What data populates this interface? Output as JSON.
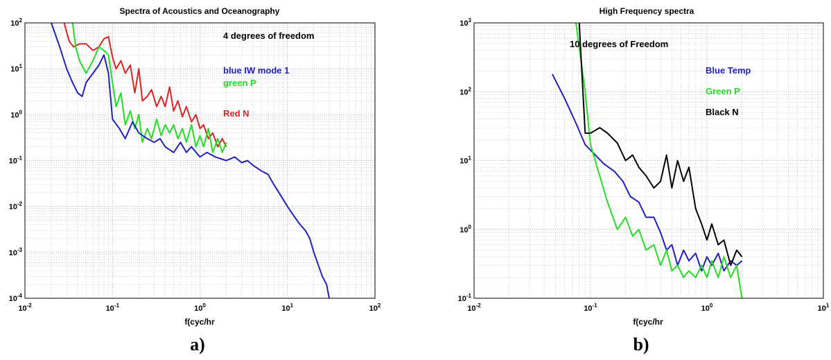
{
  "panel_labels": [
    "a)",
    "b)"
  ],
  "chart_data": [
    {
      "type": "line",
      "title": "Spectra of Acoustics and Oceanography",
      "xlabel": "f(cyc/hr",
      "ylabel": "",
      "xscale": "log",
      "yscale": "log",
      "xlim": [
        0.01,
        100
      ],
      "ylim": [
        0.0001,
        100
      ],
      "x_ticks": [
        "10-2",
        "10-1",
        "100",
        "101",
        "102"
      ],
      "y_ticks": [
        "10-4",
        "10-3",
        "10-2",
        "10-1",
        "100",
        "101",
        "102"
      ],
      "grid": true,
      "annotations": [
        {
          "text": "4 degrees of freedom",
          "color": "#000000"
        },
        {
          "text": "blue IW mode 1",
          "color": "#1f1fbf"
        },
        {
          "text": "green P",
          "color": "#22dd22"
        },
        {
          "text": "Red N",
          "color": "#dd2222"
        }
      ],
      "series": [
        {
          "color": "#dd2222",
          "x": [
            0.028,
            0.032,
            0.036,
            0.042,
            0.05,
            0.06,
            0.07,
            0.08,
            0.09,
            0.1,
            0.11,
            0.125,
            0.14,
            0.16,
            0.18,
            0.2,
            0.22,
            0.25,
            0.28,
            0.32,
            0.36,
            0.4,
            0.45,
            0.5,
            0.56,
            0.63,
            0.7,
            0.8,
            0.9,
            1.0,
            1.1,
            1.25,
            1.4,
            1.6,
            1.8,
            2.0
          ],
          "y": [
            100,
            40,
            30,
            35,
            35,
            25,
            30,
            45,
            50,
            18,
            10,
            15,
            8,
            12,
            3,
            10,
            2,
            2.5,
            3.5,
            1.5,
            2.5,
            1.5,
            4,
            1.2,
            2,
            0.9,
            1.5,
            0.7,
            1.0,
            0.5,
            0.6,
            0.3,
            0.4,
            0.2,
            0.3,
            0.2
          ]
        },
        {
          "color": "#22dd22",
          "x": [
            0.035,
            0.038,
            0.042,
            0.05,
            0.06,
            0.07,
            0.08,
            0.09,
            0.1,
            0.11,
            0.125,
            0.14,
            0.16,
            0.18,
            0.2,
            0.22,
            0.25,
            0.28,
            0.32,
            0.36,
            0.4,
            0.45,
            0.5,
            0.56,
            0.63,
            0.7,
            0.8,
            0.9,
            1.0,
            1.1,
            1.25,
            1.4,
            1.6,
            1.8,
            2.0
          ],
          "y": [
            100,
            30,
            15,
            8,
            15,
            30,
            25,
            20,
            5,
            1.5,
            3,
            0.6,
            1.2,
            0.5,
            1.0,
            0.25,
            0.5,
            0.3,
            0.8,
            0.35,
            0.6,
            0.4,
            0.6,
            0.3,
            0.5,
            0.25,
            0.6,
            0.2,
            0.35,
            0.2,
            0.5,
            0.15,
            0.3,
            0.15,
            0.25
          ]
        },
        {
          "color": "#1f1fbf",
          "x": [
            0.02,
            0.025,
            0.03,
            0.035,
            0.04,
            0.045,
            0.05,
            0.06,
            0.07,
            0.08,
            0.09,
            0.1,
            0.12,
            0.14,
            0.17,
            0.2,
            0.25,
            0.3,
            0.35,
            0.4,
            0.5,
            0.6,
            0.7,
            0.8,
            1.0,
            1.2,
            1.5,
            2.0,
            2.5,
            3.0,
            3.5,
            4.0,
            5.0,
            6.0,
            7.0,
            8.0,
            10.0,
            12.0,
            14.0,
            16.0,
            18.0,
            20.0,
            22.0,
            25.0,
            28.0,
            30.0
          ],
          "y": [
            100,
            30,
            10,
            5,
            3,
            2.5,
            5,
            8,
            12,
            20,
            8,
            0.8,
            0.5,
            0.3,
            0.7,
            0.4,
            0.3,
            0.25,
            0.3,
            0.2,
            0.15,
            0.25,
            0.15,
            0.2,
            0.12,
            0.15,
            0.12,
            0.1,
            0.12,
            0.09,
            0.1,
            0.08,
            0.06,
            0.05,
            0.03,
            0.02,
            0.01,
            0.006,
            0.004,
            0.003,
            0.002,
            0.001,
            0.0006,
            0.0003,
            0.0002,
            0.0001
          ]
        }
      ]
    },
    {
      "type": "line",
      "title": "High Frequency spectra",
      "xlabel": "f(cyc/hr",
      "ylabel": "",
      "xscale": "log",
      "yscale": "log",
      "xlim": [
        0.01,
        10
      ],
      "ylim": [
        0.1,
        1000
      ],
      "x_ticks": [
        "10-2",
        "10-1",
        "100",
        "101"
      ],
      "y_ticks": [
        "10-1",
        "100",
        "101",
        "102",
        "103"
      ],
      "grid": true,
      "annotations": [
        {
          "text": "10 degrees of Freedom",
          "color": "#000000"
        },
        {
          "text": "Blue Temp",
          "color": "#1f1fbf"
        },
        {
          "text": "Green P",
          "color": "#22dd22"
        },
        {
          "text": "Black N",
          "color": "#000000"
        }
      ],
      "series": [
        {
          "color": "#1f1fbf",
          "x": [
            0.047,
            0.06,
            0.075,
            0.09,
            0.11,
            0.13,
            0.16,
            0.19,
            0.22,
            0.26,
            0.3,
            0.35,
            0.4,
            0.45,
            0.5,
            0.56,
            0.63,
            0.7,
            0.8,
            0.9,
            1.0,
            1.1,
            1.25,
            1.4,
            1.6,
            1.8,
            2.0
          ],
          "y": [
            180,
            80,
            35,
            17,
            12,
            9,
            7,
            5,
            3,
            2.5,
            1.5,
            1.5,
            0.9,
            0.5,
            0.6,
            0.3,
            0.5,
            0.35,
            0.45,
            0.25,
            0.4,
            0.3,
            0.45,
            0.25,
            0.35,
            0.3,
            0.35
          ]
        },
        {
          "color": "#22dd22",
          "x": [
            0.075,
            0.09,
            0.1,
            0.12,
            0.14,
            0.17,
            0.2,
            0.23,
            0.26,
            0.3,
            0.35,
            0.4,
            0.45,
            0.5,
            0.56,
            0.63,
            0.7,
            0.8,
            0.9,
            1.0,
            1.1,
            1.25,
            1.4,
            1.6,
            1.8,
            2.0
          ],
          "y": [
            1000,
            100,
            17,
            6,
            2.5,
            1.0,
            1.5,
            0.8,
            1.0,
            0.5,
            0.6,
            0.3,
            0.5,
            0.25,
            0.3,
            0.2,
            0.25,
            0.2,
            0.3,
            0.2,
            0.35,
            0.2,
            0.4,
            0.2,
            0.3,
            0.1
          ]
        },
        {
          "color": "#000000",
          "x": [
            0.08,
            0.09,
            0.1,
            0.12,
            0.14,
            0.17,
            0.2,
            0.23,
            0.26,
            0.3,
            0.35,
            0.4,
            0.45,
            0.5,
            0.56,
            0.63,
            0.7,
            0.8,
            0.9,
            1.0,
            1.1,
            1.25,
            1.4,
            1.6,
            1.8,
            2.0
          ],
          "y": [
            1000,
            25,
            25,
            30,
            25,
            18,
            10,
            12,
            8,
            6,
            4,
            5,
            12,
            4,
            10,
            5,
            8,
            2,
            1.2,
            0.7,
            1.2,
            0.6,
            0.7,
            0.3,
            0.5,
            0.4
          ]
        }
      ]
    }
  ]
}
